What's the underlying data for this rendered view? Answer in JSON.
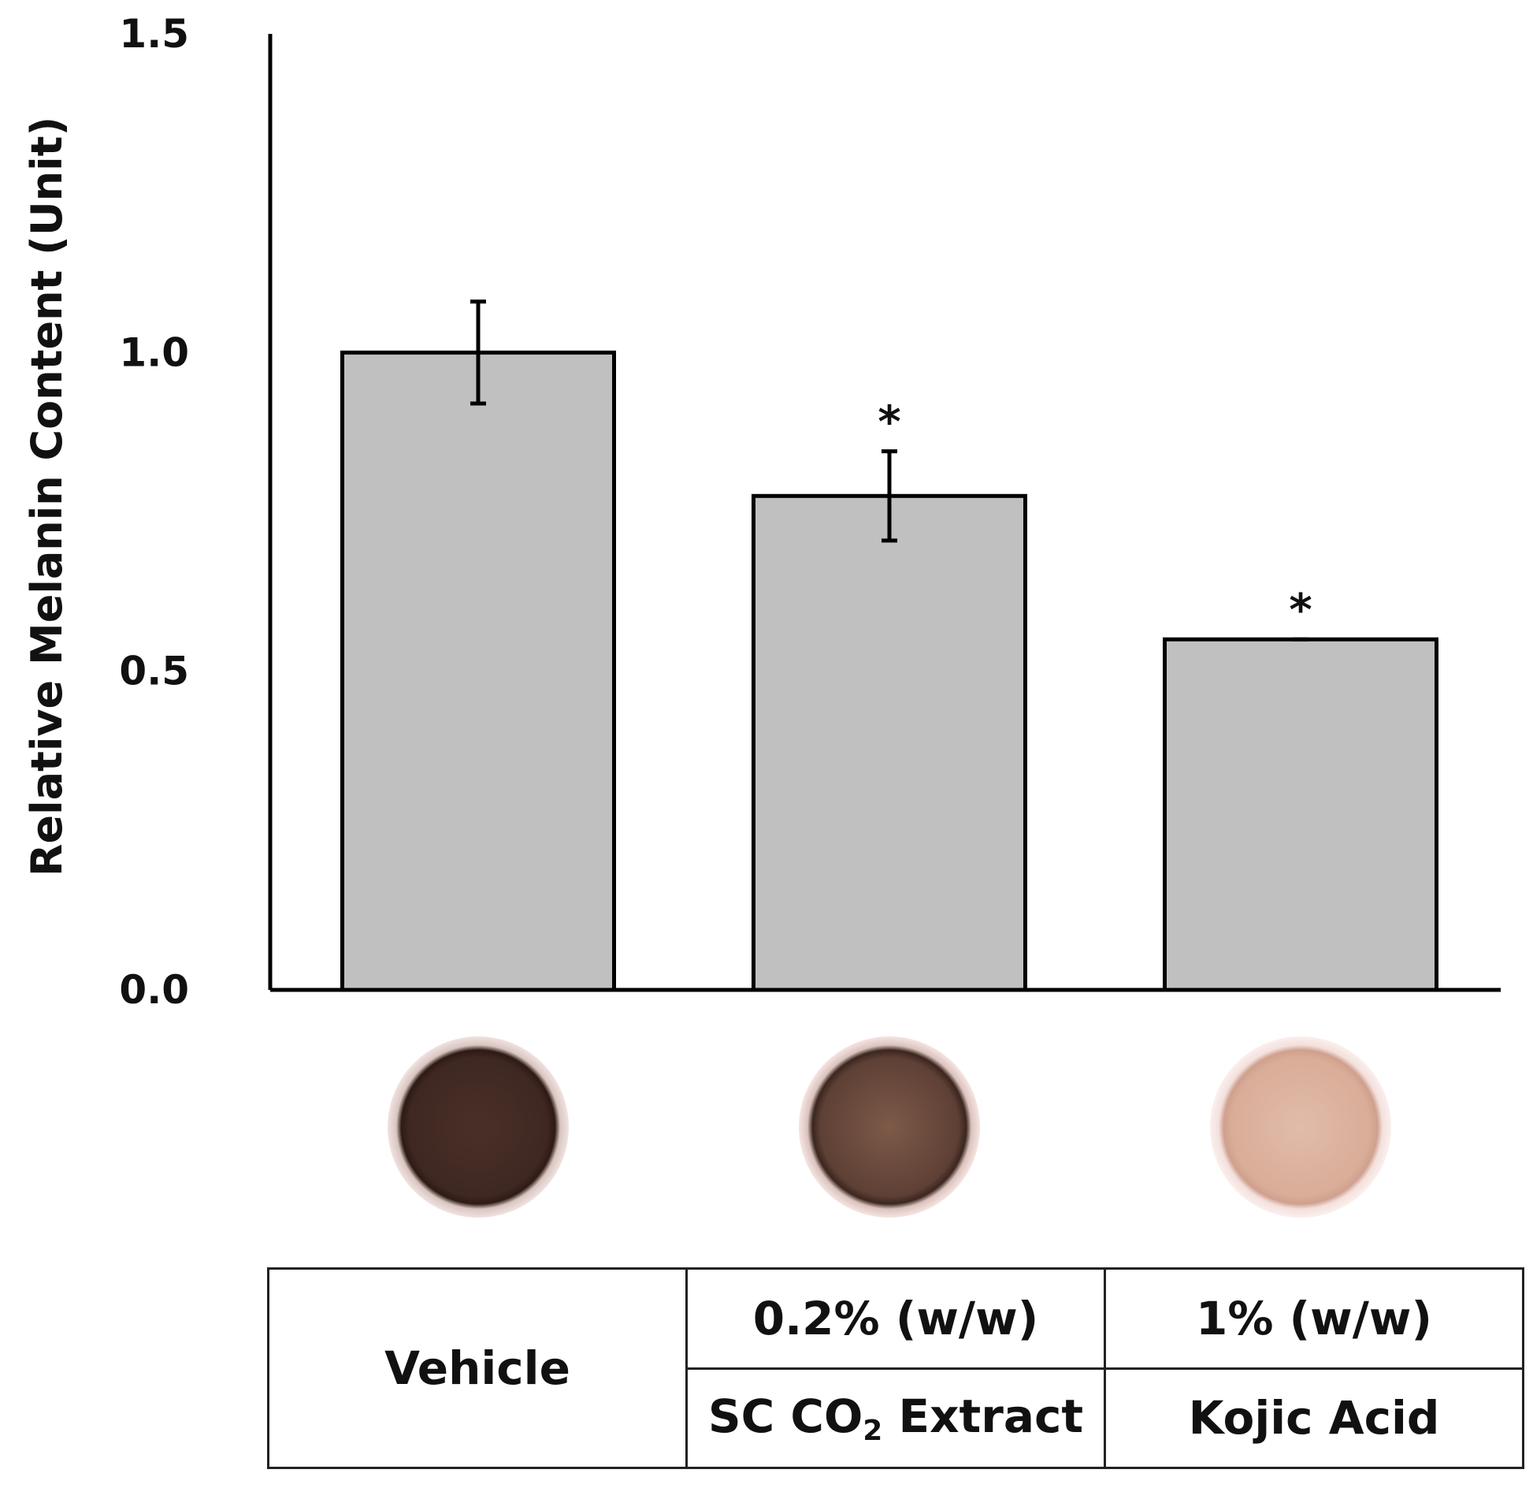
{
  "chart_data": {
    "type": "bar",
    "categories": [
      "Vehicle",
      "SC CO2 Extract 0.2% (w/w)",
      "Kojic Acid 1% (w/w)"
    ],
    "values": [
      1.0,
      0.775,
      0.55
    ],
    "errors": [
      0.08,
      0.07,
      0.0
    ],
    "significance": [
      "",
      "*",
      "*"
    ],
    "ylabel": "Relative Melanin Content (Unit)",
    "xlabel": "",
    "title": "",
    "ylim": [
      0,
      1.5
    ],
    "yticks": [
      "0.0",
      "0.5",
      "1.0",
      "1.5"
    ],
    "ytick_values": [
      0,
      0.5,
      1.0,
      1.5
    ],
    "grid": false,
    "bar_color": "#c0c0c0",
    "edge_color": "#000000"
  },
  "wells": [
    {
      "label": "vehicle-well",
      "color": "#3f2822"
    },
    {
      "label": "sc-co2-well",
      "color": "#5e4035"
    },
    {
      "label": "kojic-acid-well",
      "color": "#d9ad98"
    }
  ],
  "table": {
    "vehicle": "Vehicle",
    "extract_conc": "0.2% (w/w)",
    "extract_name_pre": "SC CO",
    "extract_name_sub": "2",
    "extract_name_post": " Extract",
    "kojic_conc": "1% (w/w)",
    "kojic_name": "Kojic Acid"
  }
}
